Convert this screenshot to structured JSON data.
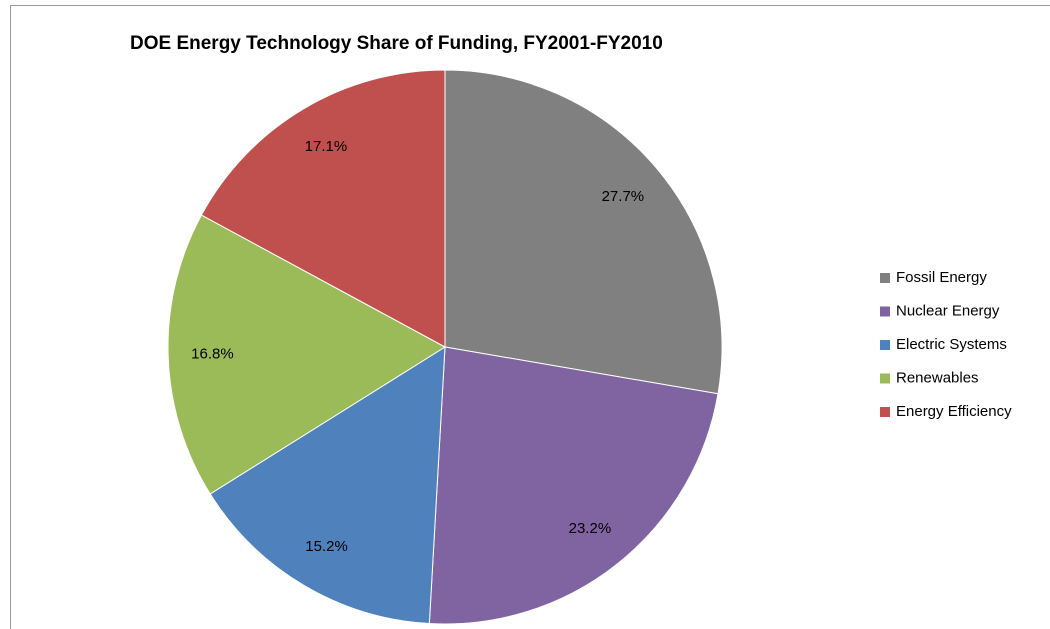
{
  "chart_data": {
    "type": "pie",
    "title": "DOE Energy Technology Share of Funding, FY2001-FY2010",
    "categories": [
      "Fossil Energy",
      "Nuclear Energy",
      "Electric Systems",
      "Renewables",
      "Energy Efficiency"
    ],
    "values": [
      27.7,
      23.2,
      15.2,
      16.8,
      17.1
    ],
    "value_labels": [
      "27.7%",
      "23.2%",
      "15.2%",
      "16.8%",
      "17.1%"
    ],
    "colors": [
      "#808080",
      "#8064a2",
      "#4f81bd",
      "#9bbb59",
      "#c0504d"
    ],
    "legend": "right"
  }
}
